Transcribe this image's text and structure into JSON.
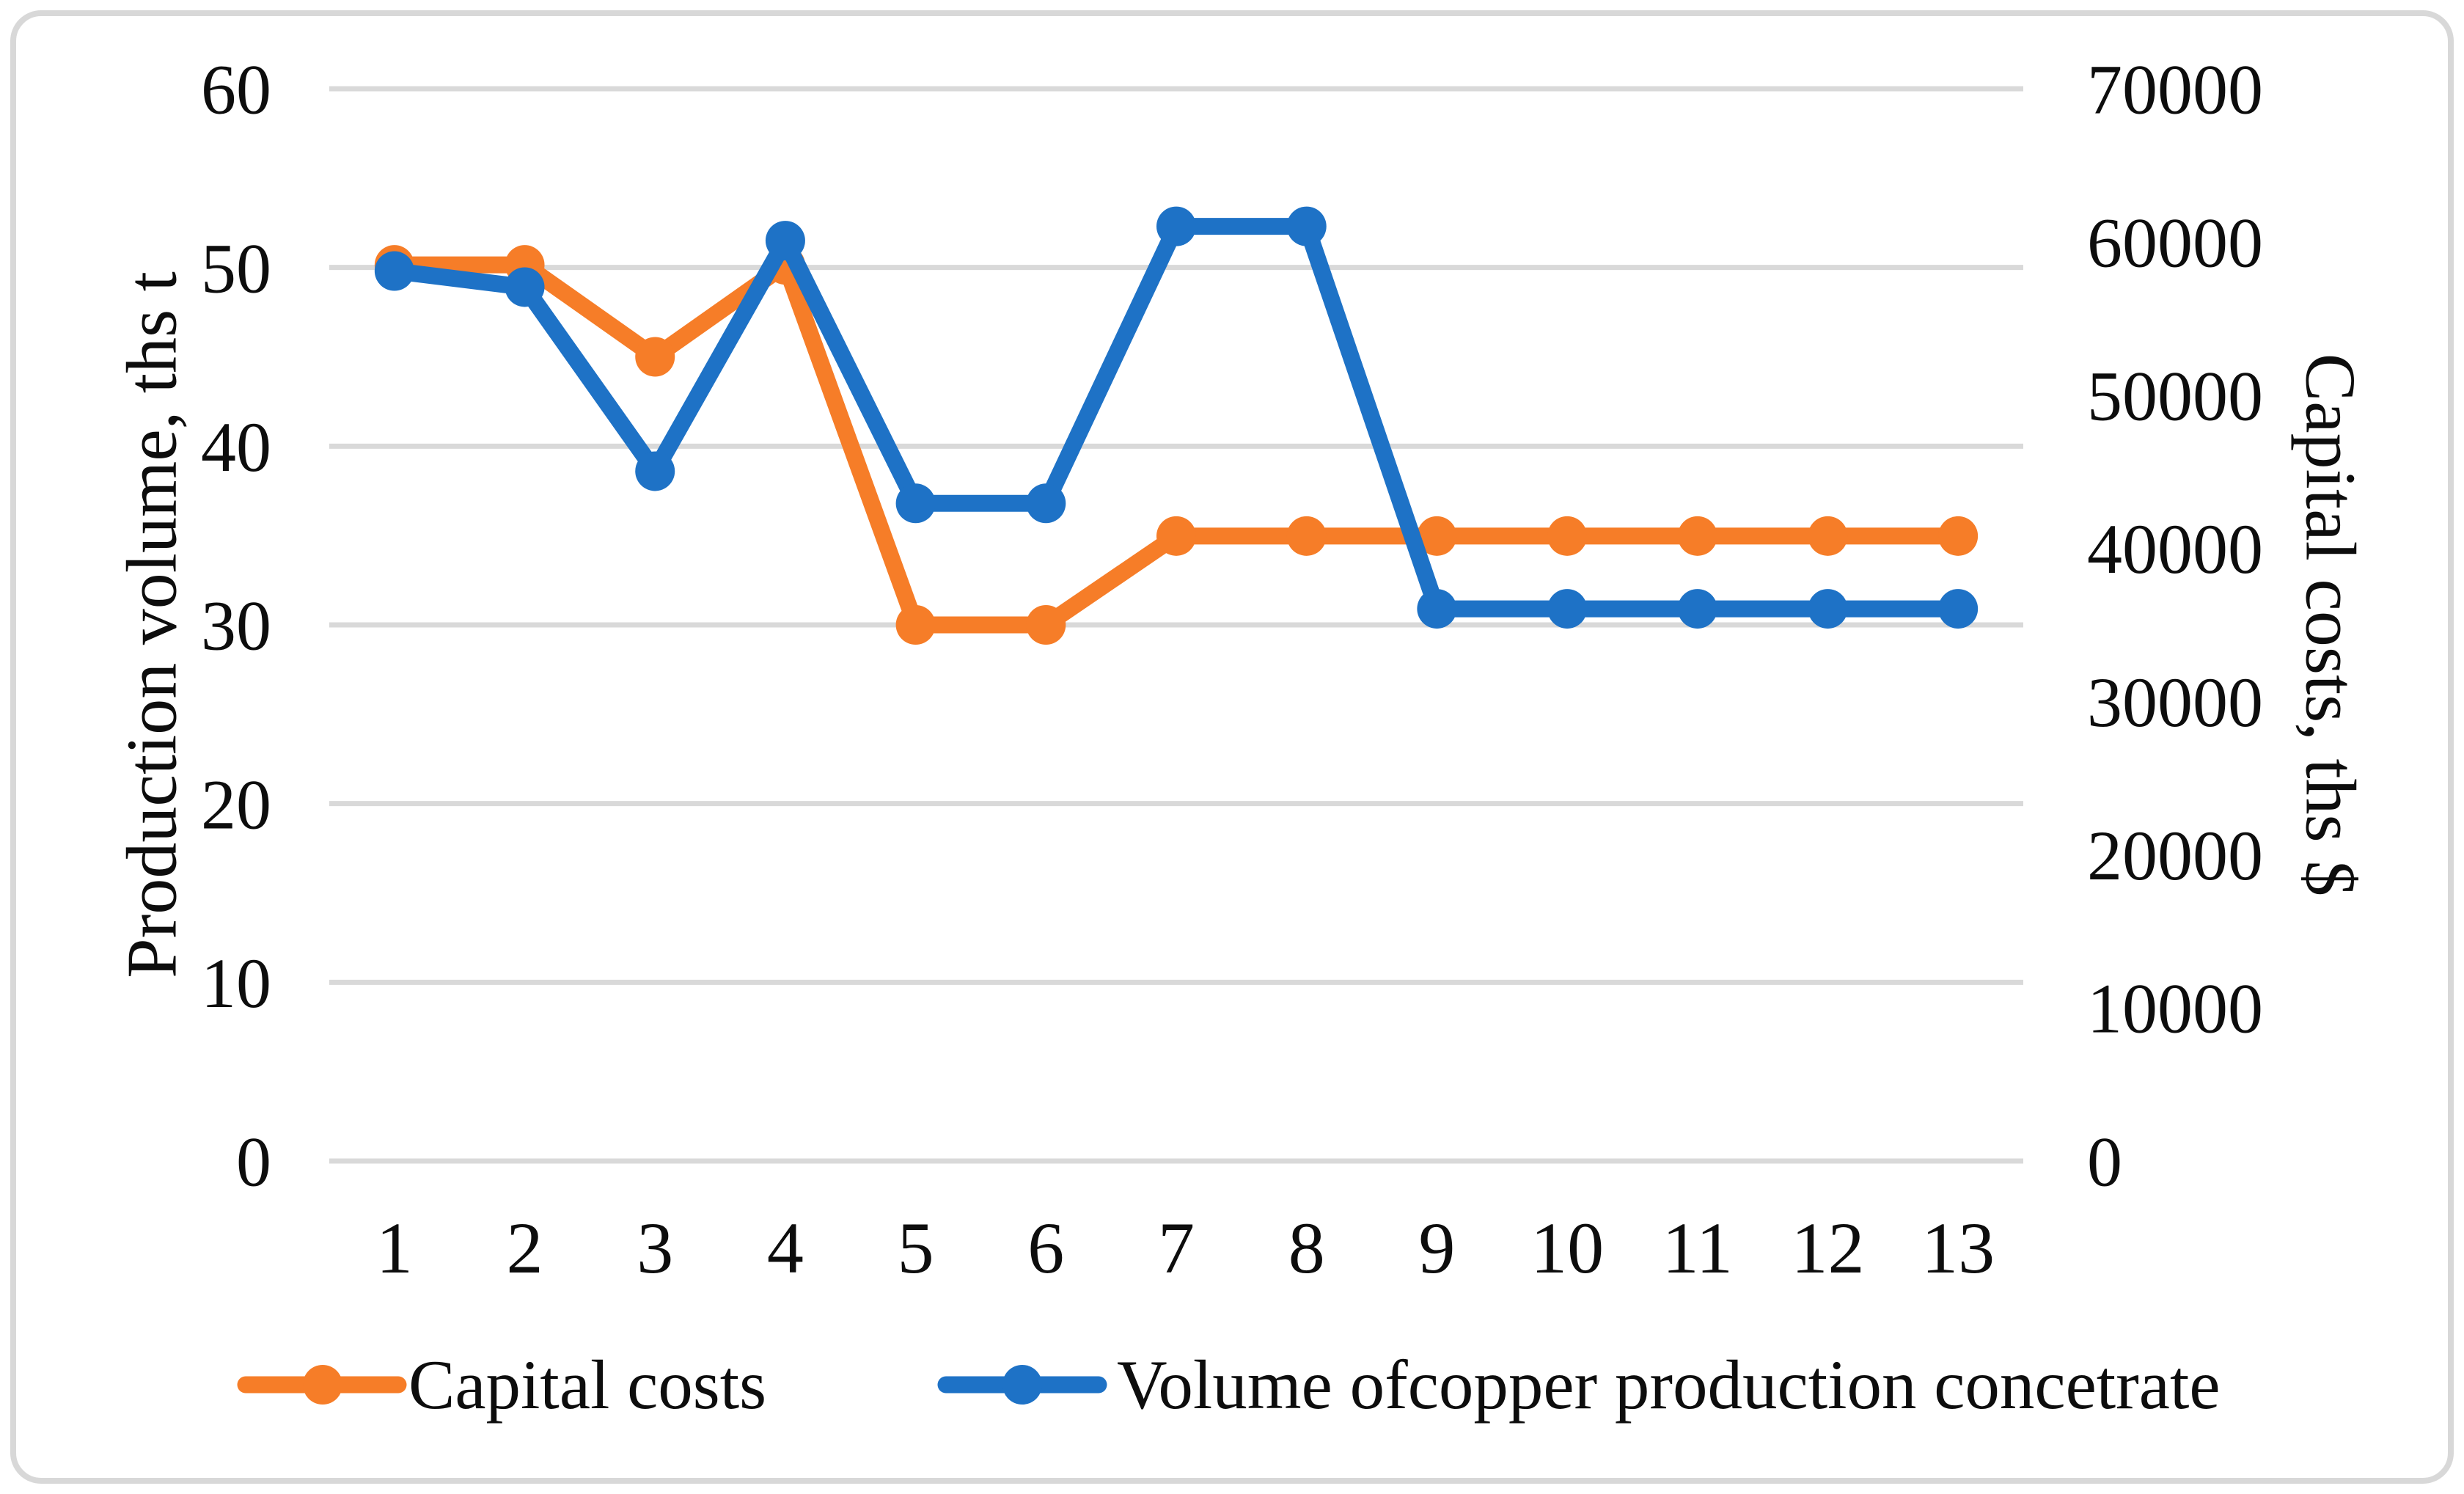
{
  "chart_data": {
    "type": "line",
    "categories": [
      "1",
      "2",
      "3",
      "4",
      "5",
      "6",
      "7",
      "8",
      "9",
      "10",
      "11",
      "12",
      "13"
    ],
    "series": [
      {
        "name": "Capital costs",
        "yaxis": "right",
        "color": "#F67D28",
        "marker": "circle",
        "values": [
          58500,
          58500,
          52500,
          58500,
          35000,
          35000,
          40800,
          40800,
          40800,
          40800,
          40800,
          40800,
          40800
        ]
      },
      {
        "name": "Volume ofcopper production concetrate",
        "yaxis": "left",
        "color": "#1E72C6",
        "marker": "circle",
        "values": [
          49.8,
          48.9,
          38.6,
          51.5,
          36.8,
          36.8,
          52.3,
          52.3,
          30.9,
          30.9,
          30.9,
          30.9,
          30.9
        ]
      }
    ],
    "left_axis": {
      "title": "Production volume, ths t",
      "min": 0,
      "max": 60,
      "step": 10,
      "tick_labels": [
        "0",
        "10",
        "20",
        "30",
        "40",
        "50",
        "60"
      ]
    },
    "right_axis": {
      "title": "Capital costs, ths $",
      "min": 0,
      "max": 70000,
      "step": 10000,
      "tick_labels": [
        "0",
        "10000",
        "20000",
        "30000",
        "40000",
        "50000",
        "60000",
        "70000"
      ]
    },
    "grid": true,
    "gridline_color": "#d9d9d9",
    "legend_position": "bottom"
  }
}
